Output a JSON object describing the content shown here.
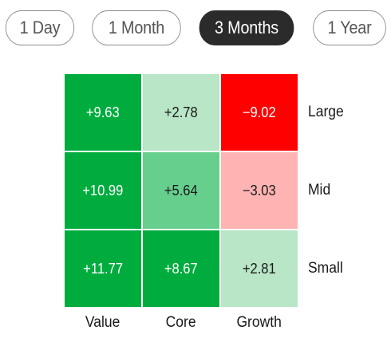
{
  "tabs": [
    {
      "label": "1 Day",
      "active": false
    },
    {
      "label": "1 Month",
      "active": false
    },
    {
      "label": "3 Months",
      "active": true
    },
    {
      "label": "1 Year",
      "active": false
    }
  ],
  "heatmap": {
    "rows": [
      "Large",
      "Mid",
      "Small"
    ],
    "columns": [
      "Value",
      "Core",
      "Growth"
    ],
    "cells": [
      [
        {
          "text": "+9.63",
          "value": 9.63,
          "bg": "#00ac3e",
          "fg": "#ffffff"
        },
        {
          "text": "+2.78",
          "value": 2.78,
          "bg": "#b8e6c6",
          "fg": "#1a1a1a"
        },
        {
          "text": "−9.02",
          "value": -9.02,
          "bg": "#ff0000",
          "fg": "#ffffff"
        }
      ],
      [
        {
          "text": "+10.99",
          "value": 10.99,
          "bg": "#00ac3e",
          "fg": "#ffffff"
        },
        {
          "text": "+5.64",
          "value": 5.64,
          "bg": "#66cf8d",
          "fg": "#1a1a1a"
        },
        {
          "text": "−3.03",
          "value": -3.03,
          "bg": "#ffb3b3",
          "fg": "#1a1a1a"
        }
      ],
      [
        {
          "text": "+11.77",
          "value": 11.77,
          "bg": "#00ac3e",
          "fg": "#ffffff"
        },
        {
          "text": "+8.67",
          "value": 8.67,
          "bg": "#00ac3e",
          "fg": "#ffffff"
        },
        {
          "text": "+2.81",
          "value": 2.81,
          "bg": "#b8e6c6",
          "fg": "#1a1a1a"
        }
      ]
    ]
  },
  "chart_data": {
    "type": "heatmap",
    "x": [
      "Value",
      "Core",
      "Growth"
    ],
    "y": [
      "Large",
      "Mid",
      "Small"
    ],
    "values": [
      [
        9.63,
        2.78,
        -9.02
      ],
      [
        10.99,
        5.64,
        -3.03
      ],
      [
        11.77,
        8.67,
        2.81
      ]
    ]
  }
}
